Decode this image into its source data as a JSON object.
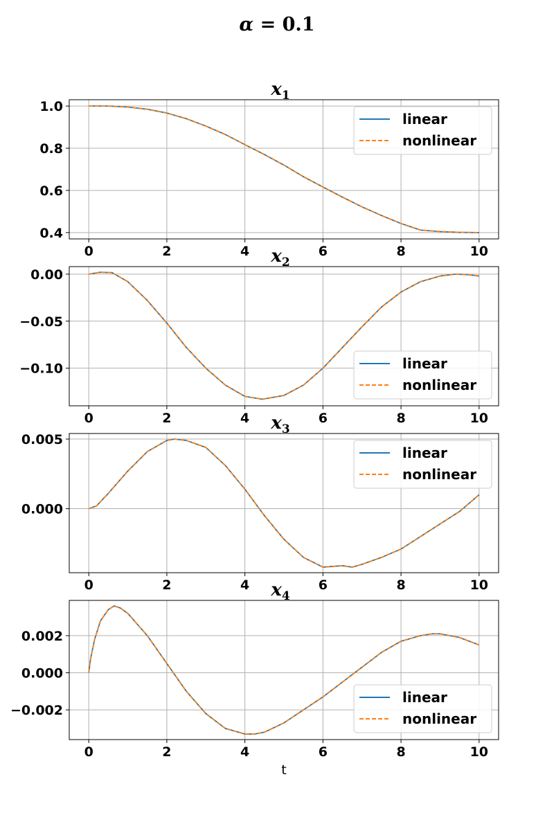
{
  "figure": {
    "title_symbol": "α",
    "title_rest": " = 0.1",
    "xlabel": "t"
  },
  "chart_data": [
    {
      "type": "line",
      "title": "x",
      "title_sub": "1",
      "xlim": [
        -0.5,
        10.5
      ],
      "ylim": [
        0.37,
        1.03
      ],
      "xticks": [
        0,
        2,
        4,
        6,
        8,
        10
      ],
      "yticks": [
        0.4,
        0.6,
        0.8,
        1.0
      ],
      "ytick_labels": [
        "0.4",
        "0.6",
        "0.8",
        "1.0"
      ],
      "grid": true,
      "legend_loc": "upper right",
      "x": [
        0,
        0.5,
        1,
        1.5,
        2,
        2.5,
        3,
        3.5,
        4,
        4.5,
        5,
        5.5,
        6,
        6.5,
        7,
        7.5,
        8,
        8.5,
        9,
        9.5,
        10
      ],
      "series": [
        {
          "name": "linear",
          "color": "#1f77b4",
          "style": "solid",
          "values": [
            1.0,
            1.0,
            0.995,
            0.985,
            0.967,
            0.94,
            0.905,
            0.865,
            0.817,
            0.77,
            0.72,
            0.665,
            0.616,
            0.568,
            0.522,
            0.481,
            0.443,
            0.412,
            0.405,
            0.401,
            0.4
          ]
        },
        {
          "name": "nonlinear",
          "color": "#ff7f0e",
          "style": "dashed",
          "values": [
            1.0,
            1.0,
            0.995,
            0.985,
            0.967,
            0.94,
            0.905,
            0.865,
            0.817,
            0.77,
            0.72,
            0.665,
            0.616,
            0.568,
            0.522,
            0.481,
            0.443,
            0.412,
            0.405,
            0.401,
            0.4
          ]
        }
      ]
    },
    {
      "type": "line",
      "title": "x",
      "title_sub": "2",
      "xlim": [
        -0.5,
        10.5
      ],
      "ylim": [
        -0.14,
        0.008
      ],
      "xticks": [
        0,
        2,
        4,
        6,
        8,
        10
      ],
      "yticks": [
        -0.1,
        -0.05,
        0.0
      ],
      "ytick_labels": [
        "−0.10",
        "−0.05",
        "0.00"
      ],
      "grid": true,
      "legend_loc": "lower right",
      "x": [
        0,
        0.3,
        0.6,
        1,
        1.5,
        2,
        2.5,
        3,
        3.5,
        4,
        4.45,
        5,
        5.5,
        6,
        6.5,
        7,
        7.5,
        8,
        8.5,
        9,
        9.4,
        9.7,
        10
      ],
      "series": [
        {
          "name": "linear",
          "color": "#1f77b4",
          "style": "solid",
          "values": [
            0.0,
            0.002,
            0.0015,
            -0.008,
            -0.028,
            -0.052,
            -0.078,
            -0.1,
            -0.118,
            -0.13,
            -0.133,
            -0.129,
            -0.118,
            -0.1,
            -0.078,
            -0.056,
            -0.035,
            -0.019,
            -0.008,
            -0.002,
            0.0,
            -0.0005,
            -0.002
          ]
        },
        {
          "name": "nonlinear",
          "color": "#ff7f0e",
          "style": "dashed",
          "values": [
            0.0,
            0.002,
            0.0015,
            -0.008,
            -0.028,
            -0.052,
            -0.078,
            -0.1,
            -0.118,
            -0.13,
            -0.133,
            -0.129,
            -0.118,
            -0.1,
            -0.078,
            -0.056,
            -0.035,
            -0.019,
            -0.008,
            -0.002,
            0.0,
            -0.0005,
            -0.002
          ]
        }
      ]
    },
    {
      "type": "line",
      "title": "x",
      "title_sub": "3",
      "xlim": [
        -0.5,
        10.5
      ],
      "ylim": [
        -0.0046,
        0.0054
      ],
      "xticks": [
        0,
        2,
        4,
        6,
        8,
        10
      ],
      "yticks": [
        0.0,
        0.005
      ],
      "ytick_labels": [
        "0.000",
        "0.005"
      ],
      "grid": true,
      "legend_loc": "upper right",
      "x": [
        0,
        0.2,
        0.5,
        1,
        1.5,
        2,
        2.2,
        2.5,
        3,
        3.5,
        4,
        4.5,
        5,
        5.5,
        6,
        6.5,
        6.75,
        7,
        7.5,
        8,
        8.5,
        9,
        9.5,
        10
      ],
      "series": [
        {
          "name": "linear",
          "color": "#1f77b4",
          "style": "solid",
          "values": [
            0.0,
            0.0002,
            0.0011,
            0.0027,
            0.0041,
            0.0049,
            0.005,
            0.0049,
            0.0044,
            0.0031,
            0.0014,
            -0.0005,
            -0.0022,
            -0.0035,
            -0.0042,
            -0.0041,
            -0.0042,
            -0.004,
            -0.0035,
            -0.0029,
            -0.002,
            -0.0011,
            -0.0002,
            0.001
          ]
        },
        {
          "name": "nonlinear",
          "color": "#ff7f0e",
          "style": "dashed",
          "values": [
            0.0,
            0.0002,
            0.0011,
            0.0027,
            0.0041,
            0.0049,
            0.005,
            0.0049,
            0.0044,
            0.0031,
            0.0014,
            -0.0005,
            -0.0022,
            -0.0035,
            -0.0042,
            -0.0041,
            -0.0042,
            -0.004,
            -0.0035,
            -0.0029,
            -0.002,
            -0.0011,
            -0.0002,
            0.001
          ]
        }
      ]
    },
    {
      "type": "line",
      "title": "x",
      "title_sub": "4",
      "xlim": [
        -0.5,
        10.5
      ],
      "ylim": [
        -0.0036,
        0.0039
      ],
      "xticks": [
        0,
        2,
        4,
        6,
        8,
        10
      ],
      "yticks": [
        -0.002,
        0.0,
        0.002
      ],
      "ytick_labels": [
        "−0.002",
        "0.000",
        "0.002"
      ],
      "grid": true,
      "legend_loc": "lower right",
      "x": [
        0,
        0.05,
        0.15,
        0.3,
        0.5,
        0.65,
        0.8,
        1,
        1.5,
        2,
        2.5,
        3,
        3.5,
        4,
        4.25,
        4.5,
        5,
        5.5,
        6,
        6.5,
        7,
        7.5,
        8,
        8.5,
        8.8,
        9,
        9.5,
        10
      ],
      "series": [
        {
          "name": "linear",
          "color": "#1f77b4",
          "style": "solid",
          "values": [
            0.0,
            0.0008,
            0.0018,
            0.0028,
            0.0034,
            0.0036,
            0.0035,
            0.0032,
            0.002,
            0.0005,
            -0.001,
            -0.0022,
            -0.003,
            -0.0033,
            -0.0033,
            -0.0032,
            -0.0027,
            -0.002,
            -0.0013,
            -0.0005,
            0.0003,
            0.0011,
            0.0017,
            0.002,
            0.0021,
            0.0021,
            0.0019,
            0.0015
          ]
        },
        {
          "name": "nonlinear",
          "color": "#ff7f0e",
          "style": "dashed",
          "values": [
            0.0,
            0.0008,
            0.0018,
            0.0028,
            0.0034,
            0.0036,
            0.0035,
            0.0032,
            0.002,
            0.0005,
            -0.001,
            -0.0022,
            -0.003,
            -0.0033,
            -0.0033,
            -0.0032,
            -0.0027,
            -0.002,
            -0.0013,
            -0.0005,
            0.0003,
            0.0011,
            0.0017,
            0.002,
            0.0021,
            0.0021,
            0.0019,
            0.0015
          ]
        }
      ]
    }
  ]
}
